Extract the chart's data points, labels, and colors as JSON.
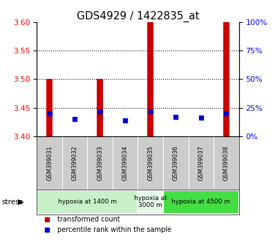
{
  "title": "GDS4929 / 1422835_at",
  "samples": [
    "GSM399031",
    "GSM399032",
    "GSM399033",
    "GSM399034",
    "GSM399035",
    "GSM399036",
    "GSM399037",
    "GSM399038"
  ],
  "transformed_counts": [
    3.5,
    3.4,
    3.5,
    3.4,
    3.6,
    3.4,
    3.4,
    3.6
  ],
  "percentile_ranks": [
    20,
    15,
    22,
    14,
    22,
    17,
    16,
    20
  ],
  "ylim_left": [
    3.4,
    3.6
  ],
  "ylim_right": [
    0,
    100
  ],
  "yticks_left": [
    3.4,
    3.45,
    3.5,
    3.55,
    3.6
  ],
  "yticks_right": [
    0,
    25,
    50,
    75,
    100
  ],
  "bar_color": "#cc0000",
  "dot_color": "#0000cc",
  "bar_bottom": 3.4,
  "group_colors": [
    "#c8f0c8",
    "#e8f8e8",
    "#44dd44"
  ],
  "group_labels": [
    "hypoxia at 1400 m",
    "hypoxia at\n3000 m",
    "hypoxia at 4500 m"
  ],
  "group_ranges": [
    [
      0,
      3
    ],
    [
      4,
      4
    ],
    [
      5,
      7
    ]
  ],
  "stress_label": "stress",
  "legend_red": "transformed count",
  "legend_blue": "percentile rank within the sample",
  "background_color": "#ffffff",
  "sample_box_color": "#cccccc",
  "grid_color": "#000000",
  "title_fontsize": 11,
  "tick_fontsize": 8,
  "bar_width": 0.25
}
